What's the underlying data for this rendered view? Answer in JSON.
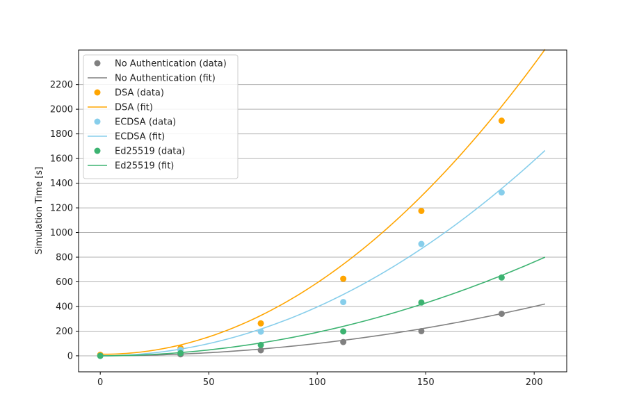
{
  "chart_data": {
    "type": "scatter",
    "title": "",
    "xlabel": "",
    "ylabel": "Simulation Time [s]",
    "xlim": [
      -10,
      215
    ],
    "ylim": [
      -130,
      2480
    ],
    "xticks": [
      0,
      50,
      100,
      150,
      200
    ],
    "yticks": [
      0,
      200,
      400,
      600,
      800,
      1000,
      1200,
      1400,
      1600,
      1800,
      2000,
      2200
    ],
    "grid": "horizontal",
    "legend_position": "top-left",
    "x": [
      0,
      37,
      74,
      112,
      148,
      185
    ],
    "fit_x_range": [
      0,
      205
    ],
    "series": [
      {
        "name": "No Authentication",
        "data_label": "No Authentication (data)",
        "fit_label": "No Authentication (fit)",
        "color": "#808080",
        "values": [
          0,
          12,
          45,
          112,
          200,
          341
        ],
        "fit_coef": [
          0.01,
          0,
          0
        ]
      },
      {
        "name": "DSA",
        "data_label": "DSA (data)",
        "fit_label": "DSA (fit)",
        "color": "#ffa500",
        "values": [
          8,
          62,
          263,
          625,
          1175,
          1907
        ],
        "fit_coef": [
          0.05966,
          -0.1695,
          12.8
        ]
      },
      {
        "name": "ECDSA",
        "data_label": "ECDSA (data)",
        "fit_label": "ECDSA (fit)",
        "color": "#87ceeb",
        "values": [
          0,
          48,
          196,
          436,
          907,
          1325
        ],
        "fit_coef": [
          0.03963,
          0,
          0
        ]
      },
      {
        "name": "Ed25519",
        "data_label": "Ed25519 (data)",
        "fit_label": "Ed25519 (fit)",
        "color": "#3cb371",
        "values": [
          0,
          22,
          88,
          198,
          432,
          635
        ],
        "fit_coef": [
          0.01904,
          0,
          0
        ]
      }
    ]
  }
}
